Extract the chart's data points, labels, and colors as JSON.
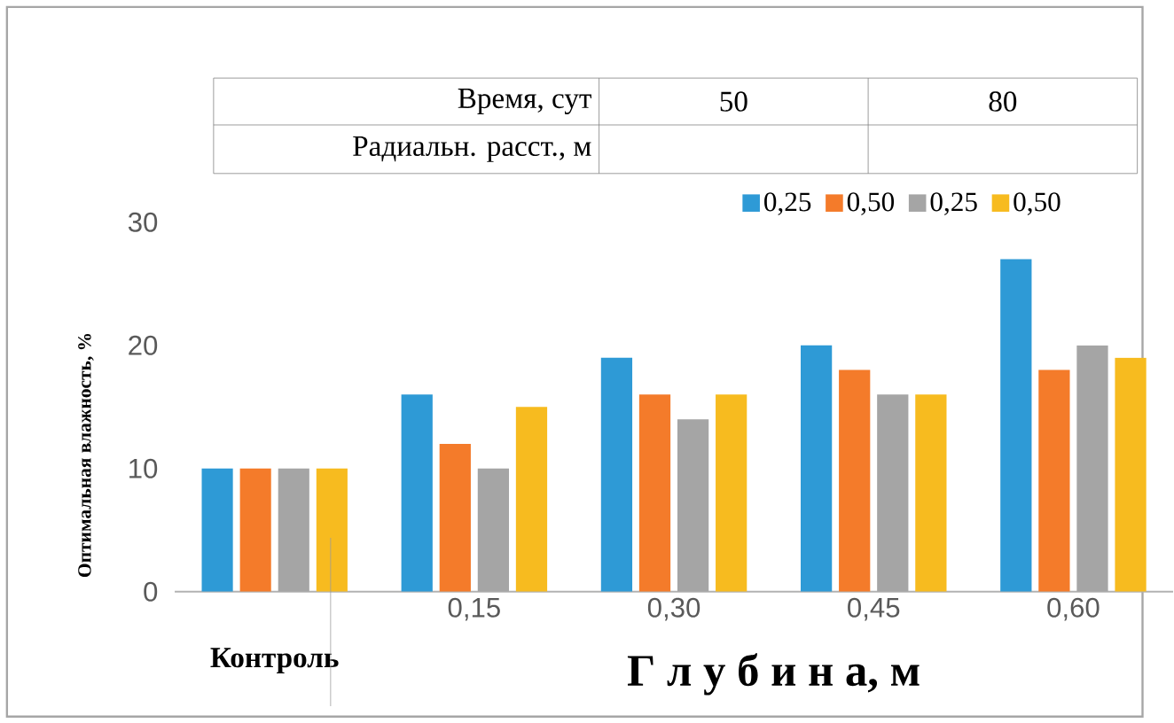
{
  "chart_data": {
    "type": "bar",
    "ylabel": "Оптимальная влажность, %",
    "xlabel": "Г л у б и н а, м",
    "categories": [
      "Контроль",
      "0,15",
      "0,30",
      "0,45",
      "0,60"
    ],
    "legend_title": "Радиальн. расст., м",
    "annotations": [
      "Время, сут",
      "50",
      "80"
    ],
    "series": [
      {
        "name": "0,25",
        "color": "#2e9ad6",
        "values": [
          10,
          16,
          19,
          20,
          27
        ]
      },
      {
        "name": "0,50",
        "color": "#f47b2a",
        "values": [
          10,
          12,
          16,
          18,
          18
        ]
      },
      {
        "name": "0,25",
        "color": "#a5a5a5",
        "values": [
          10,
          10,
          14,
          16,
          20
        ]
      },
      {
        "name": "0,50",
        "color": "#f7bb1f",
        "values": [
          10,
          15,
          16,
          16,
          19
        ]
      }
    ],
    "ylim": [
      0,
      30
    ],
    "yticks": [
      0,
      10,
      20,
      30
    ],
    "grid": false,
    "legend": "top"
  }
}
